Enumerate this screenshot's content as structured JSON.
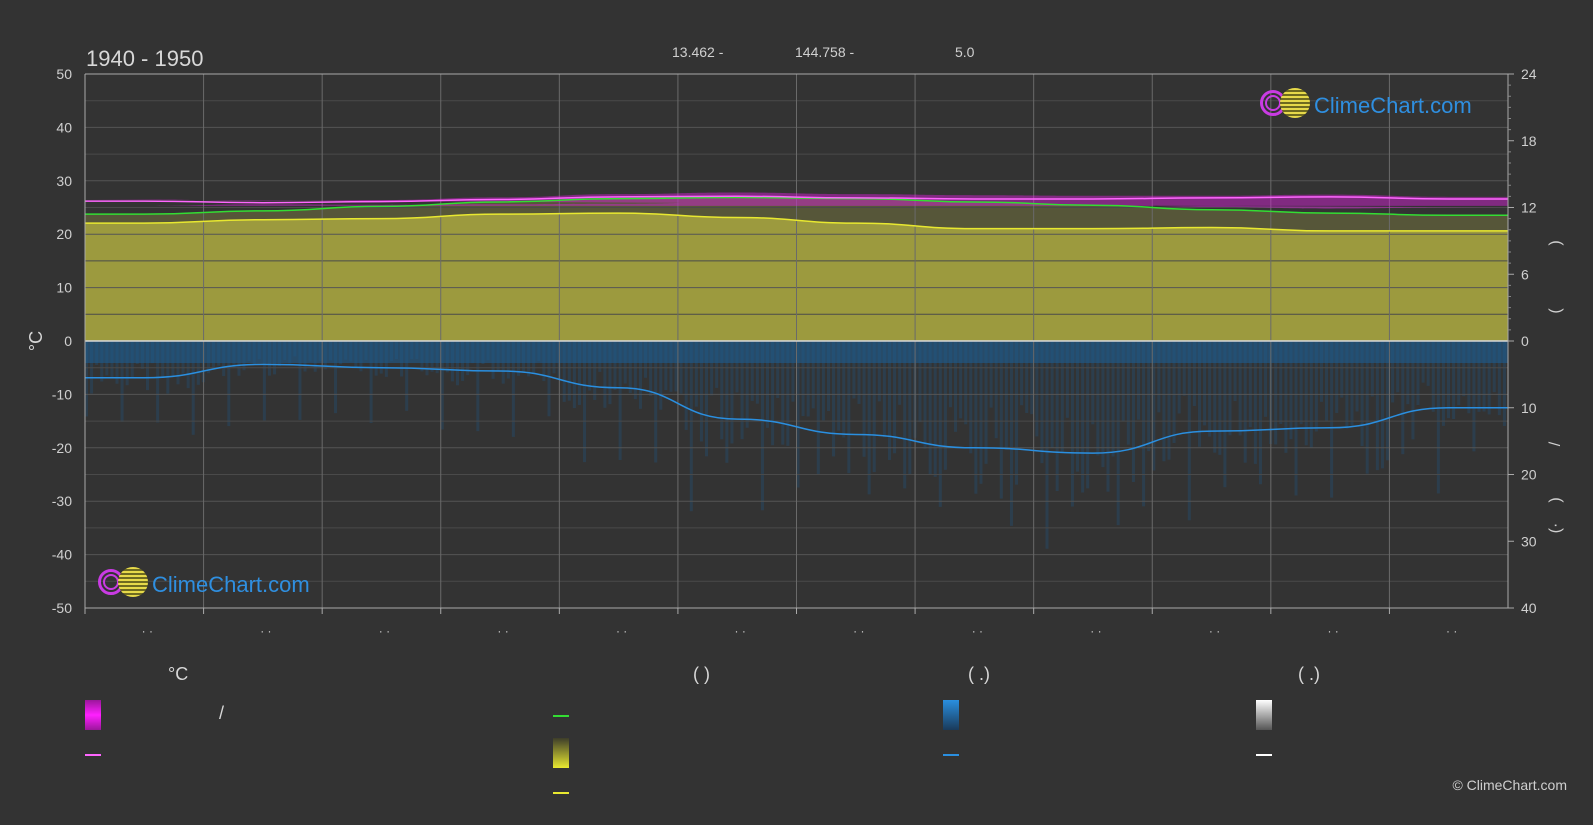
{
  "header": {
    "period": "1940 - 1950",
    "lat": "13.462 -",
    "lon": "144.758 -",
    "elevation": "5.0"
  },
  "logo_text": "ClimeChart.com",
  "copyright": "© ClimeChart.com",
  "legend": {
    "col1_head": "°C",
    "col2_head": "(        )",
    "col3_head": "(   .)",
    "col4_head": "(   .)",
    "slash": "/"
  },
  "colors": {
    "background": "#333333",
    "temp_band": "#e020e0",
    "temp_mean": "#ff66ff",
    "sun_line": "#33dd33",
    "daylight_fill": "#a8a640",
    "sunshine_line": "#e8e830",
    "precip_fill": "#1e5f95",
    "precip_line": "#2a8fe0",
    "snow": "#ffffff"
  },
  "chart_data": {
    "type": "area",
    "title": "1940 - 1950",
    "ylabel": "°C",
    "ylim": [
      -50,
      50
    ],
    "yticks": [
      50,
      40,
      30,
      20,
      10,
      0,
      -10,
      -20,
      -30,
      -40,
      -50
    ],
    "right_axis_top": {
      "ticks": [
        24,
        18,
        12,
        6,
        0
      ],
      "range": [
        0,
        24
      ]
    },
    "right_axis_bottom": {
      "ticks": [
        0,
        10,
        20,
        30,
        40
      ],
      "range": [
        0,
        40
      ]
    },
    "right_axis_labels": [
      ")",
      "(",
      "/",
      ")",
      "(·"
    ],
    "x_ticks": [
      "· ·",
      "· ·",
      "· ·",
      "· ·",
      "· ·",
      "· ·",
      "· ·",
      "· ·",
      "· ·",
      "· ·",
      "· ·",
      "· ·"
    ],
    "grid": true,
    "months": 12,
    "series": [
      {
        "key": "temp_max_band",
        "values": [
          26.5,
          26.2,
          26.4,
          26.9,
          27.5,
          27.8,
          27.5,
          27.3,
          27.2,
          27.2,
          27.4,
          27.0
        ]
      },
      {
        "key": "temp_min_band",
        "values": [
          25.0,
          24.8,
          25.1,
          25.6,
          26.2,
          26.5,
          26.0,
          25.7,
          25.6,
          25.5,
          25.6,
          25.3
        ]
      },
      {
        "key": "temp_mean",
        "values": [
          26.2,
          25.9,
          26.1,
          26.5,
          27.0,
          27.1,
          26.8,
          26.6,
          26.6,
          26.8,
          27.0,
          26.6
        ]
      },
      {
        "key": "daylight_hours",
        "values": [
          11.4,
          11.7,
          12.1,
          12.5,
          12.8,
          12.9,
          12.8,
          12.5,
          12.2,
          11.8,
          11.5,
          11.3
        ]
      },
      {
        "key": "sunshine_hours",
        "values": [
          10.6,
          10.9,
          11.0,
          11.4,
          11.5,
          11.1,
          10.6,
          10.1,
          10.1,
          10.2,
          9.9,
          9.9
        ]
      },
      {
        "key": "precipitation_mm",
        "values": [
          5.5,
          3.5,
          4.0,
          4.5,
          7.0,
          11.7,
          14.0,
          16.0,
          16.8,
          13.5,
          13.0,
          10.0
        ]
      }
    ]
  }
}
